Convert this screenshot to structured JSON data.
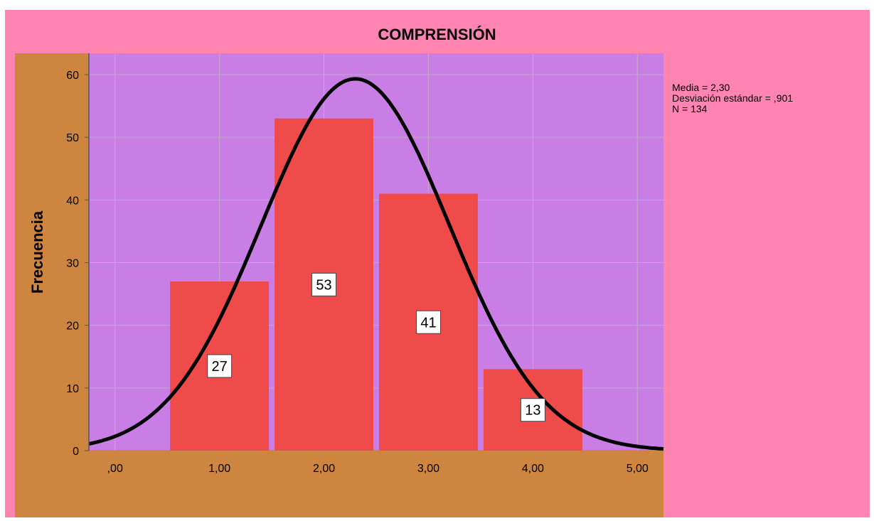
{
  "chart_data": {
    "type": "bar",
    "title": "COMPRENSIÓN",
    "ylabel": "Frecuencia",
    "xlabel": "",
    "x_ticks": [
      ",00",
      "1,00",
      "2,00",
      "3,00",
      "4,00",
      "5,00"
    ],
    "x_tick_values": [
      0,
      1,
      2,
      3,
      4,
      5
    ],
    "xlim": [
      -0.25,
      5.25
    ],
    "y_ticks": [
      "0",
      "10",
      "20",
      "30",
      "40",
      "50",
      "60"
    ],
    "y_tick_values": [
      0,
      10,
      20,
      30,
      40,
      50,
      60
    ],
    "ylim": [
      0,
      60
    ],
    "bins": [
      {
        "center": 1,
        "value": 27,
        "label": "27"
      },
      {
        "center": 2,
        "value": 53,
        "label": "53"
      },
      {
        "center": 3,
        "value": 41,
        "label": "41"
      },
      {
        "center": 4,
        "value": 13,
        "label": "13"
      }
    ],
    "normal_curve": {
      "mean": 2.3,
      "sd": 0.901,
      "n": 134
    },
    "grid": true,
    "colors": {
      "background": "#ff84b2",
      "axis_area": "#cd853f",
      "plot_area": "#c97ee5",
      "bars": "#ef4b4b",
      "curve": "#000000"
    }
  },
  "stats": {
    "line1": "Media = 2,30",
    "line2": "Desviación estándar = ,901",
    "line3": "N = 134"
  }
}
